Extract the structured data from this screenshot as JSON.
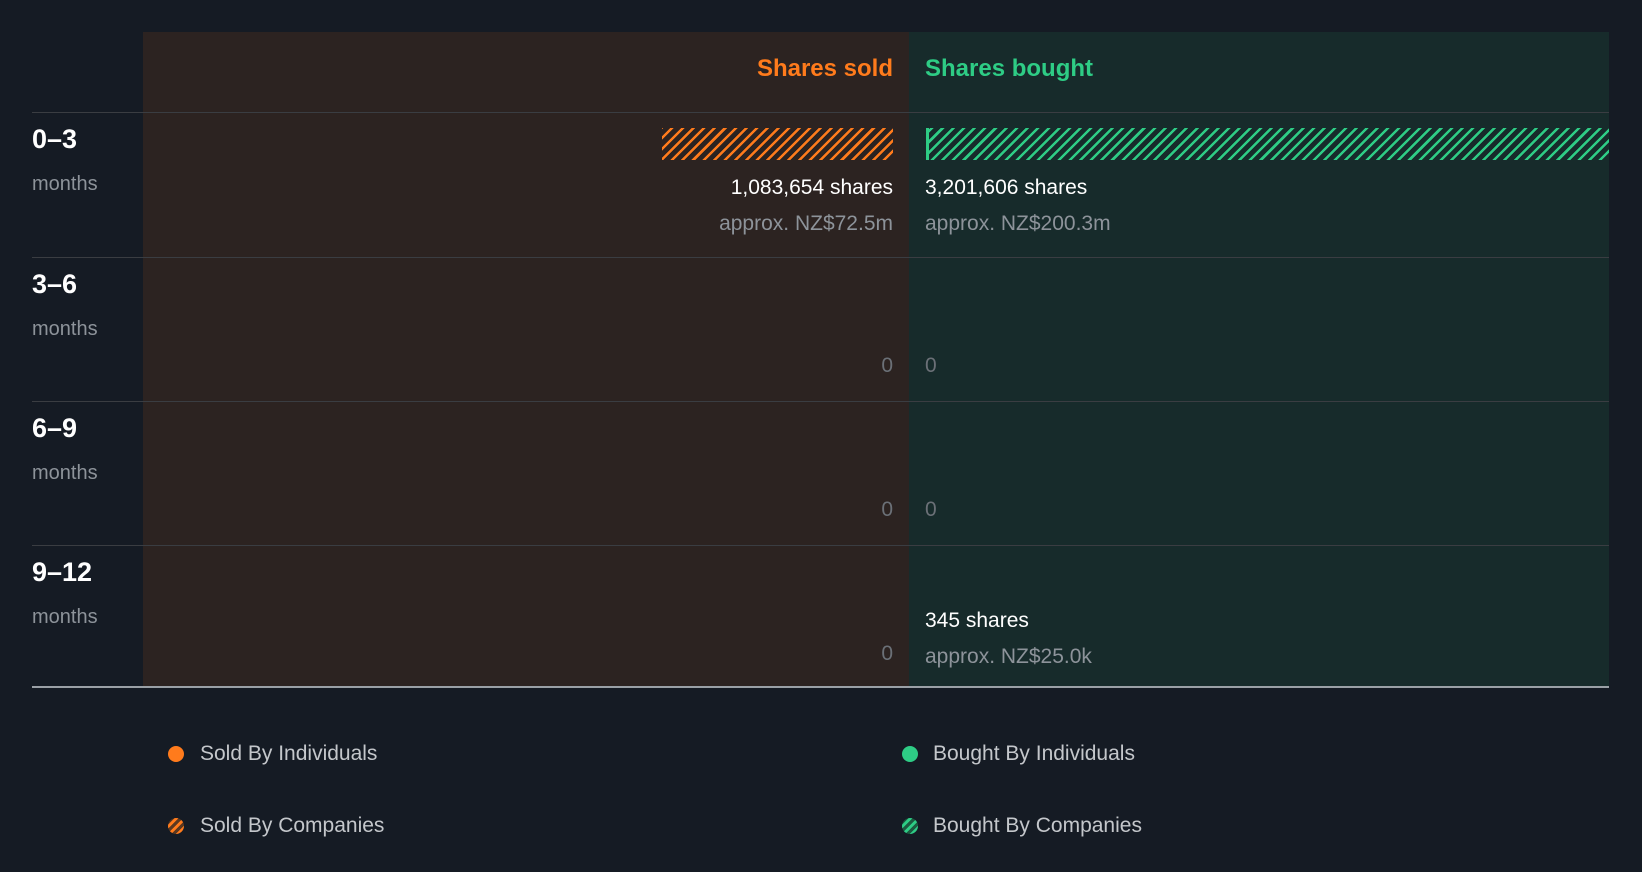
{
  "chart_data": {
    "type": "bar",
    "title": "",
    "columns": [
      "Shares sold",
      "Shares bought"
    ],
    "categories": [
      {
        "range": "0–3",
        "unit": "months"
      },
      {
        "range": "3–6",
        "unit": "months"
      },
      {
        "range": "6–9",
        "unit": "months"
      },
      {
        "range": "9–12",
        "unit": "months"
      }
    ],
    "series": [
      {
        "name": "Shares sold",
        "color": "#ff7b1c",
        "values": [
          1083654,
          0,
          0,
          0
        ],
        "labels": [
          "1,083,654 shares",
          "0",
          "0",
          "0"
        ],
        "approx": [
          "approx. NZ$72.5m",
          "",
          "",
          ""
        ]
      },
      {
        "name": "Shares bought",
        "color": "#2ecc85",
        "values": [
          3201606,
          0,
          0,
          345
        ],
        "labels": [
          "3,201,606 shares",
          "0",
          "0",
          "345 shares"
        ],
        "approx": [
          "approx. NZ$200.3m",
          "",
          "",
          "approx. NZ$25.0k"
        ]
      }
    ],
    "legend": [
      "Sold By Individuals",
      "Sold By Companies",
      "Bought By Individuals",
      "Bought By Companies"
    ],
    "legend_position": "bottom"
  }
}
